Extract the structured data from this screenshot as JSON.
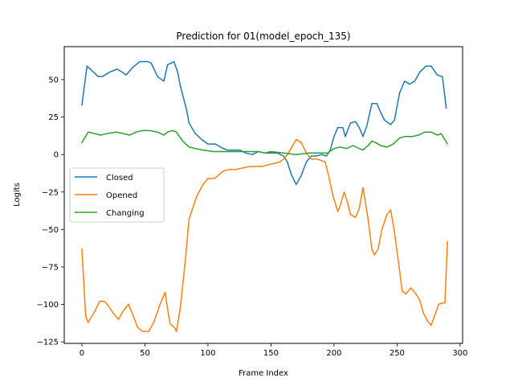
{
  "chart_data": {
    "type": "line",
    "title": "Prediction for 01(model_epoch_135)",
    "xlabel": "Frame Index",
    "ylabel": "Logits",
    "xlim": [
      -14,
      302
    ],
    "ylim": [
      -126,
      72
    ],
    "xticks": [
      0,
      50,
      100,
      150,
      200,
      250,
      300
    ],
    "yticks": [
      -125,
      -100,
      -75,
      -50,
      -25,
      0,
      25,
      50
    ],
    "grid": false,
    "legend_position": "center-left",
    "series": [
      {
        "name": "Closed",
        "color": "#1f77b4",
        "points": [
          [
            0,
            33
          ],
          [
            4,
            59
          ],
          [
            8,
            56
          ],
          [
            13,
            52
          ],
          [
            16,
            52
          ],
          [
            22,
            55
          ],
          [
            28,
            57
          ],
          [
            32,
            55
          ],
          [
            35,
            53
          ],
          [
            40,
            58
          ],
          [
            46,
            62
          ],
          [
            52,
            62
          ],
          [
            55,
            61
          ],
          [
            60,
            52
          ],
          [
            65,
            49
          ],
          [
            68,
            60
          ],
          [
            71,
            61
          ],
          [
            73,
            62
          ],
          [
            76,
            55
          ],
          [
            78,
            46
          ],
          [
            83,
            30
          ],
          [
            85,
            21
          ],
          [
            90,
            14
          ],
          [
            95,
            10
          ],
          [
            100,
            7
          ],
          [
            106,
            7
          ],
          [
            110,
            5
          ],
          [
            115,
            3
          ],
          [
            120,
            3
          ],
          [
            125,
            3
          ],
          [
            130,
            1
          ],
          [
            135,
            0
          ],
          [
            140,
            2
          ],
          [
            145,
            1
          ],
          [
            150,
            1
          ],
          [
            155,
            1
          ],
          [
            160,
            -1
          ],
          [
            163,
            -5
          ],
          [
            166,
            -13
          ],
          [
            170,
            -20
          ],
          [
            174,
            -14
          ],
          [
            178,
            -5
          ],
          [
            182,
            -1
          ],
          [
            186,
            -1
          ],
          [
            190,
            0
          ],
          [
            194,
            -1
          ],
          [
            197,
            3
          ],
          [
            200,
            12
          ],
          [
            203,
            18
          ],
          [
            207,
            18
          ],
          [
            209,
            12
          ],
          [
            213,
            21
          ],
          [
            217,
            22
          ],
          [
            220,
            18
          ],
          [
            223,
            12
          ],
          [
            226,
            19
          ],
          [
            230,
            34
          ],
          [
            234,
            34
          ],
          [
            237,
            28
          ],
          [
            240,
            23
          ],
          [
            245,
            20
          ],
          [
            248,
            23
          ],
          [
            252,
            41
          ],
          [
            256,
            49
          ],
          [
            260,
            47
          ],
          [
            264,
            49
          ],
          [
            268,
            55
          ],
          [
            273,
            59
          ],
          [
            277,
            59
          ],
          [
            282,
            53
          ],
          [
            286,
            52
          ],
          [
            289,
            31
          ]
        ]
      },
      {
        "name": "Opened",
        "color": "#ff7f0e",
        "points": [
          [
            0,
            -63
          ],
          [
            3,
            -108
          ],
          [
            5,
            -112
          ],
          [
            10,
            -105
          ],
          [
            14,
            -98
          ],
          [
            18,
            -98
          ],
          [
            21,
            -101
          ],
          [
            25,
            -106
          ],
          [
            29,
            -110
          ],
          [
            33,
            -104
          ],
          [
            37,
            -100
          ],
          [
            40,
            -106
          ],
          [
            44,
            -115
          ],
          [
            48,
            -118
          ],
          [
            53,
            -118
          ],
          [
            57,
            -112
          ],
          [
            62,
            -100
          ],
          [
            66,
            -92
          ],
          [
            68,
            -103
          ],
          [
            70,
            -113
          ],
          [
            73,
            -115
          ],
          [
            75,
            -118
          ],
          [
            78,
            -103
          ],
          [
            82,
            -71
          ],
          [
            85,
            -43
          ],
          [
            91,
            -28
          ],
          [
            96,
            -20
          ],
          [
            100,
            -16
          ],
          [
            105,
            -16
          ],
          [
            108,
            -14
          ],
          [
            112,
            -11
          ],
          [
            117,
            -10
          ],
          [
            122,
            -10
          ],
          [
            127,
            -9
          ],
          [
            133,
            -8
          ],
          [
            138,
            -8
          ],
          [
            143,
            -8
          ],
          [
            147,
            -7
          ],
          [
            152,
            -6
          ],
          [
            157,
            -5
          ],
          [
            160,
            -3
          ],
          [
            163,
            0
          ],
          [
            166,
            4
          ],
          [
            170,
            10
          ],
          [
            174,
            8
          ],
          [
            178,
            1
          ],
          [
            182,
            -3
          ],
          [
            186,
            -3
          ],
          [
            190,
            -4
          ],
          [
            193,
            -5
          ],
          [
            196,
            -15
          ],
          [
            199,
            -27
          ],
          [
            203,
            -38
          ],
          [
            205,
            -34
          ],
          [
            208,
            -25
          ],
          [
            211,
            -33
          ],
          [
            213,
            -40
          ],
          [
            217,
            -42
          ],
          [
            220,
            -36
          ],
          [
            223,
            -22
          ],
          [
            227,
            -43
          ],
          [
            230,
            -63
          ],
          [
            232,
            -67
          ],
          [
            235,
            -63
          ],
          [
            238,
            -50
          ],
          [
            242,
            -40
          ],
          [
            245,
            -37
          ],
          [
            248,
            -52
          ],
          [
            252,
            -77
          ],
          [
            254,
            -91
          ],
          [
            257,
            -93
          ],
          [
            261,
            -89
          ],
          [
            265,
            -93
          ],
          [
            268,
            -97
          ],
          [
            271,
            -106
          ],
          [
            274,
            -111
          ],
          [
            277,
            -114
          ],
          [
            280,
            -107
          ],
          [
            283,
            -100
          ],
          [
            286,
            -99
          ],
          [
            288,
            -99
          ],
          [
            290,
            -58
          ]
        ]
      },
      {
        "name": "Changing",
        "color": "#2ca02c",
        "points": [
          [
            0,
            8
          ],
          [
            5,
            15
          ],
          [
            10,
            14
          ],
          [
            15,
            13
          ],
          [
            20,
            14
          ],
          [
            27,
            15
          ],
          [
            33,
            14
          ],
          [
            38,
            13
          ],
          [
            43,
            15
          ],
          [
            48,
            16
          ],
          [
            54,
            16
          ],
          [
            60,
            15
          ],
          [
            65,
            13
          ],
          [
            68,
            15
          ],
          [
            72,
            16
          ],
          [
            75,
            15
          ],
          [
            80,
            9
          ],
          [
            85,
            5
          ],
          [
            90,
            4
          ],
          [
            96,
            3
          ],
          [
            104,
            2
          ],
          [
            110,
            2
          ],
          [
            120,
            2
          ],
          [
            130,
            2
          ],
          [
            135,
            2
          ],
          [
            140,
            2
          ],
          [
            145,
            1
          ],
          [
            150,
            2
          ],
          [
            160,
            1
          ],
          [
            170,
            0
          ],
          [
            180,
            1
          ],
          [
            190,
            1
          ],
          [
            195,
            1
          ],
          [
            200,
            4
          ],
          [
            205,
            5
          ],
          [
            210,
            4
          ],
          [
            215,
            6
          ],
          [
            220,
            4
          ],
          [
            223,
            3
          ],
          [
            227,
            6
          ],
          [
            230,
            9
          ],
          [
            233,
            8
          ],
          [
            237,
            6
          ],
          [
            242,
            5
          ],
          [
            247,
            7
          ],
          [
            252,
            11
          ],
          [
            256,
            12
          ],
          [
            262,
            12
          ],
          [
            267,
            13
          ],
          [
            272,
            15
          ],
          [
            277,
            15
          ],
          [
            282,
            13
          ],
          [
            285,
            14
          ],
          [
            290,
            7
          ]
        ]
      }
    ]
  }
}
